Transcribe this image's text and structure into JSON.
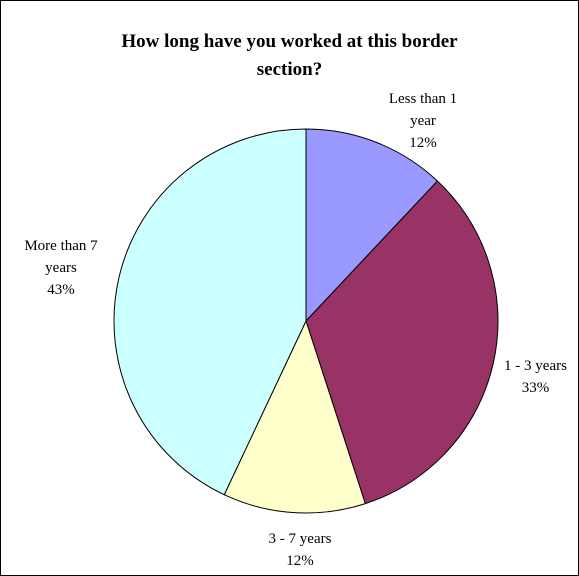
{
  "chart_data": {
    "type": "pie",
    "title": "How long have you worked at this border section?",
    "title_lines": [
      "How long have you worked at this border",
      "section?"
    ],
    "slices": [
      {
        "label": "Less than 1 year",
        "label_lines": [
          "Less than 1",
          "year"
        ],
        "value": 12,
        "percent_label": "12%",
        "color": "#9999ff"
      },
      {
        "label": "1 - 3 years",
        "label_lines": [
          "1 - 3 years"
        ],
        "value": 33,
        "percent_label": "33%",
        "color": "#993366"
      },
      {
        "label": "3 - 7 years",
        "label_lines": [
          "3 - 7 years"
        ],
        "value": 12,
        "percent_label": "12%",
        "color": "#ffffcc"
      },
      {
        "label": "More than 7 years",
        "label_lines": [
          "More than 7",
          "years"
        ],
        "value": 43,
        "percent_label": "43%",
        "color": "#ccffff"
      }
    ],
    "start": "top",
    "direction": "clockwise",
    "legend": "none"
  }
}
